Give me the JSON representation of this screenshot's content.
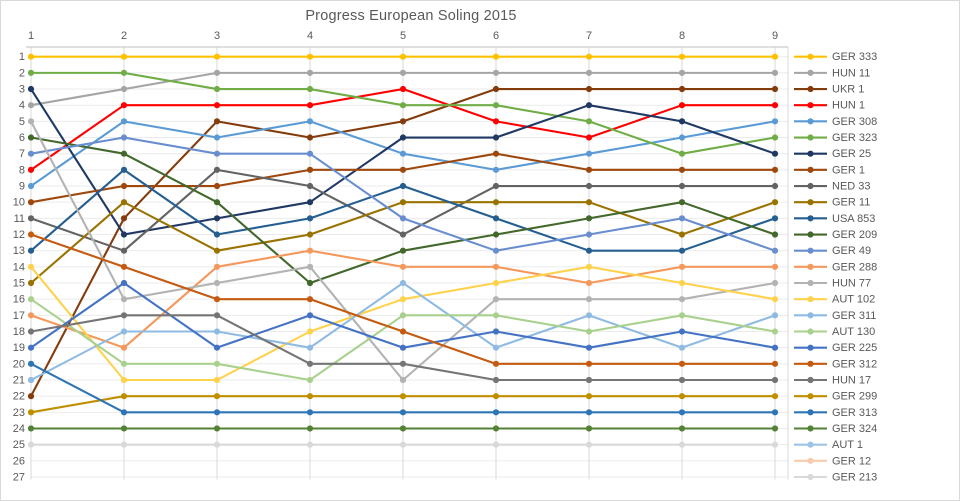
{
  "chart_data": {
    "type": "line",
    "title": "Progress European Soling 2015",
    "xlabel": "",
    "ylabel": "",
    "x_axis_position": "top",
    "legend_position": "right",
    "grid": true,
    "x_ticks": [
      "1",
      "2",
      "3",
      "4",
      "5",
      "6",
      "7",
      "8",
      "9"
    ],
    "y_ticks": [
      "1",
      "2",
      "3",
      "4",
      "5",
      "6",
      "7",
      "8",
      "9",
      "10",
      "11",
      "12",
      "13",
      "14",
      "15",
      "16",
      "17",
      "18",
      "19",
      "20",
      "21",
      "22",
      "23",
      "24",
      "25",
      "26",
      "27"
    ],
    "ylim": [
      1,
      27
    ],
    "y_inverted": true,
    "x": [
      1,
      2,
      3,
      4,
      5,
      6,
      7,
      8,
      9
    ],
    "series": [
      {
        "name": "GER 333",
        "color": "#FFC000",
        "positions": [
          1,
          1,
          1,
          1,
          1,
          1,
          1,
          1,
          1
        ]
      },
      {
        "name": "HUN 11",
        "color": "#A5A5A5",
        "positions": [
          4,
          3,
          2,
          2,
          2,
          2,
          2,
          2,
          2
        ]
      },
      {
        "name": "UKR 1",
        "color": "#843C0C",
        "positions": [
          22,
          11,
          5,
          6,
          5,
          3,
          3,
          3,
          3
        ]
      },
      {
        "name": "HUN 1",
        "color": "#FF0000",
        "positions": [
          8,
          4,
          4,
          4,
          3,
          5,
          6,
          4,
          4
        ]
      },
      {
        "name": "GER 308",
        "color": "#5B9BD5",
        "positions": [
          9,
          5,
          6,
          5,
          7,
          8,
          7,
          6,
          5
        ]
      },
      {
        "name": "GER 323",
        "color": "#70AD47",
        "positions": [
          2,
          2,
          3,
          3,
          4,
          4,
          5,
          7,
          6
        ]
      },
      {
        "name": "GER 25",
        "color": "#1F3864",
        "positions": [
          3,
          12,
          11,
          10,
          6,
          6,
          4,
          5,
          7
        ]
      },
      {
        "name": "GER 1",
        "color": "#9E480E",
        "positions": [
          10,
          9,
          9,
          8,
          8,
          7,
          8,
          8,
          8
        ]
      },
      {
        "name": "NED 33",
        "color": "#636363",
        "positions": [
          11,
          13,
          8,
          9,
          12,
          9,
          9,
          9,
          9
        ]
      },
      {
        "name": "GER 11",
        "color": "#997300",
        "positions": [
          15,
          10,
          13,
          12,
          10,
          10,
          10,
          12,
          10
        ]
      },
      {
        "name": "USA 853",
        "color": "#255E91",
        "positions": [
          13,
          8,
          12,
          11,
          9,
          11,
          13,
          13,
          11
        ]
      },
      {
        "name": "GER 209",
        "color": "#43682B",
        "positions": [
          6,
          7,
          10,
          15,
          13,
          12,
          11,
          10,
          12
        ]
      },
      {
        "name": "GER 49",
        "color": "#698ED0",
        "positions": [
          7,
          6,
          7,
          7,
          11,
          13,
          12,
          11,
          13
        ]
      },
      {
        "name": "GER 288",
        "color": "#F4985C",
        "positions": [
          17,
          19,
          14,
          13,
          14,
          14,
          15,
          14,
          14
        ]
      },
      {
        "name": "HUN 77",
        "color": "#B3B3B3",
        "positions": [
          5,
          16,
          15,
          14,
          21,
          16,
          16,
          16,
          15
        ]
      },
      {
        "name": "AUT 102",
        "color": "#FFD24D",
        "positions": [
          14,
          21,
          21,
          18,
          16,
          15,
          14,
          15,
          16
        ]
      },
      {
        "name": "GER 311",
        "color": "#8FBBE3",
        "positions": [
          21,
          18,
          18,
          19,
          15,
          19,
          17,
          19,
          17
        ]
      },
      {
        "name": "AUT 130",
        "color": "#A9D18E",
        "positions": [
          16,
          20,
          20,
          21,
          17,
          17,
          18,
          17,
          18
        ]
      },
      {
        "name": "GER 225",
        "color": "#4472C4",
        "positions": [
          19,
          15,
          19,
          17,
          19,
          18,
          19,
          18,
          19
        ]
      },
      {
        "name": "GER 312",
        "color": "#C55A11",
        "positions": [
          12,
          14,
          16,
          16,
          18,
          20,
          20,
          20,
          20
        ]
      },
      {
        "name": "HUN 17",
        "color": "#757575",
        "positions": [
          18,
          17,
          17,
          20,
          20,
          21,
          21,
          21,
          21
        ]
      },
      {
        "name": "GER 299",
        "color": "#BF8F00",
        "positions": [
          23,
          22,
          22,
          22,
          22,
          22,
          22,
          22,
          22
        ]
      },
      {
        "name": "GER 313",
        "color": "#2E75B6",
        "positions": [
          20,
          23,
          23,
          23,
          23,
          23,
          23,
          23,
          23
        ]
      },
      {
        "name": "GER 324",
        "color": "#538135",
        "positions": [
          24,
          24,
          24,
          24,
          24,
          24,
          24,
          24,
          24
        ]
      },
      {
        "name": "AUT 1",
        "color": "#9DC3E6",
        "positions": null
      },
      {
        "name": "GER 12",
        "color": "#F8CBAD",
        "positions": null
      },
      {
        "name": "GER 213",
        "color": "#D9D9D9",
        "positions": [
          25,
          25,
          25,
          25,
          25,
          25,
          25,
          25,
          25
        ]
      }
    ],
    "style": {
      "text_color": "#595959",
      "axis_line_color": "#BFBFBF",
      "v_grid_color": "#D9D9D9",
      "h_grid_color": "#EBEBEB",
      "background": "#FFFFFF"
    }
  }
}
